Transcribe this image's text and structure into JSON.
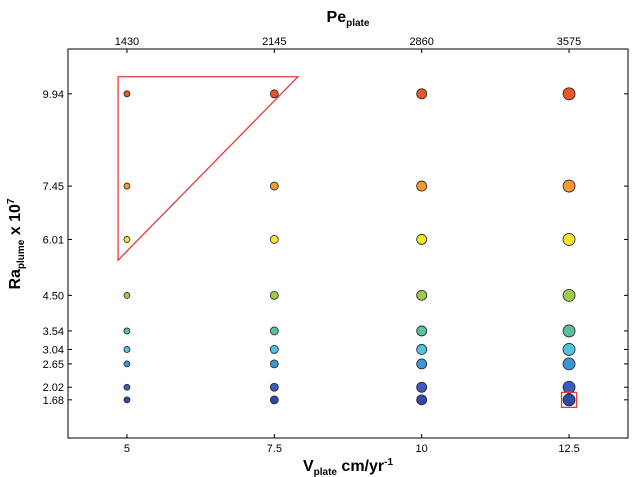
{
  "chart_data": {
    "type": "scatter",
    "xlabel": {
      "main": "V",
      "sub": "plate",
      "rest": " cm/yr",
      "sup": "-1"
    },
    "ylabel": {
      "main": "Ra",
      "sub": "plume",
      "rest": " x 10",
      "sup": "7"
    },
    "top_label": {
      "main": "Pe",
      "sub": "plate"
    },
    "x_ticks": [
      "5",
      "7.5",
      "10",
      "12.5"
    ],
    "x_tick_values": [
      5,
      7.5,
      10,
      12.5
    ],
    "top_ticks": [
      "1430",
      "2145",
      "2860",
      "3575"
    ],
    "y_ticks": [
      "9.94",
      "7.45",
      "6.01",
      "4.50",
      "3.54",
      "3.04",
      "2.65",
      "2.02",
      "1.68"
    ],
    "y_tick_values": [
      9.94,
      7.45,
      6.01,
      4.5,
      3.54,
      3.04,
      2.65,
      2.02,
      1.68
    ],
    "xlim": [
      4.0,
      13.5
    ],
    "ylim": [
      0.65,
      11.15
    ],
    "grid": false,
    "point_colors": {
      "9.94": "#e8572a",
      "7.45": "#f59a32",
      "6.01": "#f2e82a",
      "4.50": "#9ec94a",
      "3.54": "#5cc09a",
      "3.04": "#4fc4dc",
      "2.65": "#3a96d6",
      "2.02": "#3a5cc0",
      "1.68": "#2f4aa8"
    },
    "size_by_x": [
      3,
      4,
      5,
      6
    ],
    "annotations": [
      {
        "shape": "triangle",
        "color": "#e53a3a",
        "points": [
          [
            4.85,
            10.4
          ],
          [
            7.9,
            10.4
          ],
          [
            4.85,
            5.45
          ]
        ]
      },
      {
        "shape": "square",
        "color": "#e53a3a",
        "center": [
          12.5,
          1.68
        ]
      }
    ]
  }
}
